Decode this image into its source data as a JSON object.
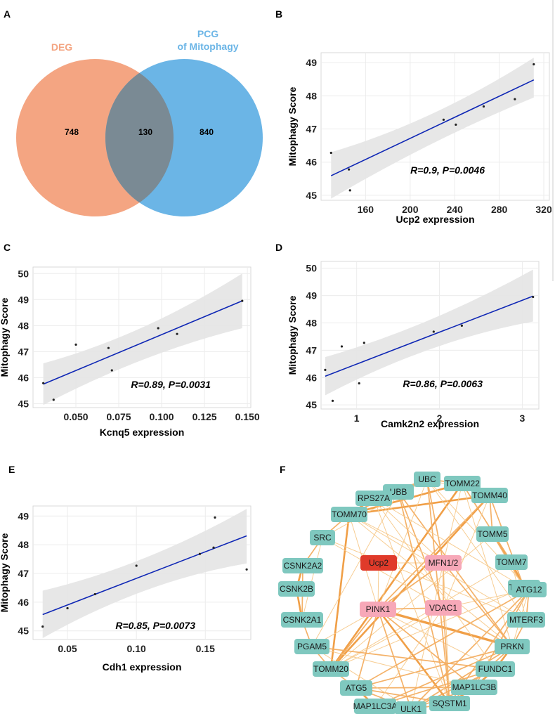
{
  "panels": {
    "A": "A",
    "B": "B",
    "C": "C",
    "D": "D",
    "E": "E",
    "F": "F"
  },
  "colors": {
    "deg": "#F4A582",
    "pcg": "#6BB5E6",
    "overlap": "#7A8A94",
    "line": "#0F27B5",
    "band": "#E6E6E6",
    "node_teal": "#7FC8BF",
    "node_pink": "#F7A8B8",
    "node_red": "#E03A2A",
    "edge": "#F3A04A"
  },
  "venn": {
    "left_label": "DEG",
    "right_label_line1": "PCG",
    "right_label_line2": "of Mitophagy",
    "left_only": "748",
    "overlap": "130",
    "right_only": "840"
  },
  "chart_data": [
    {
      "id": "B",
      "type": "scatter",
      "xlabel": "Ucp2 expression",
      "ylabel": "Mitophagy Score",
      "annotation": "R=0.9,   P=0.0046",
      "xlim": [
        120,
        325
      ],
      "ylim": [
        44.85,
        49.3
      ],
      "xticks": [
        160,
        200,
        240,
        280,
        320
      ],
      "yticks": [
        45,
        46,
        47,
        48,
        49
      ],
      "x": [
        129,
        145,
        146,
        230,
        241,
        266,
        294,
        311
      ],
      "y": [
        46.28,
        45.78,
        45.15,
        47.28,
        47.13,
        47.68,
        47.9,
        48.95
      ],
      "fit": {
        "x0": 129,
        "y0": 45.59,
        "x1": 311,
        "y1": 48.48,
        "band_lo0": 44.9,
        "band_lo_mid": 46.7,
        "band_lo1": 47.95,
        "band_hi0": 46.3,
        "band_hi_mid": 47.2,
        "band_hi1": 49.15
      }
    },
    {
      "id": "C",
      "type": "scatter",
      "xlabel": "Kcnq5 expression",
      "ylabel": "Mitophagy Score",
      "annotation": "R=0.89, P=0.0031",
      "xlim": [
        0.025,
        0.152
      ],
      "ylim": [
        44.85,
        50.25
      ],
      "xticks": [
        0.05,
        0.075,
        0.1,
        0.125,
        0.15
      ],
      "xticklabels": [
        "0.050",
        "0.075",
        "0.100",
        "0.125",
        "0.150"
      ],
      "yticks": [
        45,
        46,
        47,
        48,
        49,
        50
      ],
      "x": [
        0.031,
        0.037,
        0.05,
        0.069,
        0.071,
        0.098,
        0.109,
        0.147
      ],
      "y": [
        45.79,
        45.15,
        47.27,
        47.14,
        46.28,
        47.9,
        47.68,
        48.95
      ],
      "fit": {
        "x0": 0.031,
        "y0": 45.75,
        "x1": 0.147,
        "y1": 48.95,
        "band_lo0": 44.95,
        "band_lo_mid": 46.95,
        "band_lo1": 47.9,
        "band_hi0": 46.55,
        "band_hi_mid": 47.6,
        "band_hi1": 50.0
      }
    },
    {
      "id": "D",
      "type": "scatter",
      "xlabel": "Camk2n2 expression",
      "ylabel": "Mitophagy Score",
      "annotation": "R=0.86, P=0.0063",
      "xlim": [
        0.57,
        3.2
      ],
      "ylim": [
        44.85,
        50.25
      ],
      "xticks": [
        1,
        2,
        3
      ],
      "yticks": [
        45,
        46,
        47,
        48,
        49,
        50
      ],
      "x": [
        0.62,
        0.71,
        0.82,
        1.03,
        1.09,
        1.93,
        2.27,
        3.13
      ],
      "y": [
        46.28,
        45.15,
        47.14,
        45.79,
        47.27,
        47.68,
        47.9,
        48.95
      ],
      "fit": {
        "x0": 0.62,
        "y0": 46.05,
        "x1": 3.13,
        "y1": 48.98,
        "band_lo0": 45.35,
        "band_lo_mid": 47.35,
        "band_lo1": 48.05,
        "band_hi0": 46.75,
        "band_hi_mid": 47.85,
        "band_hi1": 49.95
      }
    },
    {
      "id": "E",
      "type": "scatter",
      "xlabel": "Cdh1 expression",
      "ylabel": "Mitophagy Score",
      "annotation": "R=0.85, P=0.0073",
      "xlim": [
        0.025,
        0.183
      ],
      "ylim": [
        44.7,
        49.35
      ],
      "xticks": [
        0.05,
        0.1,
        0.15
      ],
      "xticklabels": [
        "0.05",
        "0.10",
        "0.15"
      ],
      "yticks": [
        45,
        46,
        47,
        48,
        49
      ],
      "x": [
        0.032,
        0.05,
        0.07,
        0.1,
        0.146,
        0.156,
        0.157,
        0.18
      ],
      "y": [
        45.15,
        45.79,
        46.28,
        47.27,
        47.68,
        47.9,
        48.95,
        47.14
      ],
      "fit": {
        "x0": 0.032,
        "y0": 45.57,
        "x1": 0.18,
        "y1": 48.31,
        "band_lo0": 44.75,
        "band_lo_mid": 46.75,
        "band_lo1": 47.35,
        "band_hi0": 46.4,
        "band_hi_mid": 47.25,
        "band_hi1": 49.25
      }
    }
  ],
  "network": {
    "nodes": [
      {
        "id": "UBB",
        "label": "UBB",
        "kind": "teal"
      },
      {
        "id": "UBC",
        "label": "UBC",
        "kind": "teal"
      },
      {
        "id": "TOMM22",
        "label": "TOMM22",
        "kind": "teal"
      },
      {
        "id": "RPS27A",
        "label": "RPS27A",
        "kind": "teal"
      },
      {
        "id": "TOMM40",
        "label": "TOMM40",
        "kind": "teal"
      },
      {
        "id": "TOMM70",
        "label": "TOMM70",
        "kind": "teal"
      },
      {
        "id": "TOMM5",
        "label": "TOMM5",
        "kind": "teal"
      },
      {
        "id": "SRC",
        "label": "SRC",
        "kind": "teal"
      },
      {
        "id": "TOMM7",
        "label": "TOMM7",
        "kind": "teal"
      },
      {
        "id": "CSNK2A2",
        "label": "CSNK2A2",
        "kind": "teal"
      },
      {
        "id": "TOMM6",
        "label": "TOMM6",
        "kind": "teal"
      },
      {
        "id": "Ucp2",
        "label": "Ucp2",
        "kind": "red"
      },
      {
        "id": "MFN12",
        "label": "MFN1/2",
        "kind": "pink"
      },
      {
        "id": "CSNK2B",
        "label": "CSNK2B",
        "kind": "teal"
      },
      {
        "id": "ATG12",
        "label": "ATG12",
        "kind": "teal"
      },
      {
        "id": "PINK1",
        "label": "PINK1",
        "kind": "pink"
      },
      {
        "id": "VDAC1",
        "label": "VDAC1",
        "kind": "pink"
      },
      {
        "id": "CSNK2A1",
        "label": "CSNK2A1",
        "kind": "teal"
      },
      {
        "id": "MTERF3",
        "label": "MTERF3",
        "kind": "teal"
      },
      {
        "id": "PGAM5",
        "label": "PGAM5",
        "kind": "teal"
      },
      {
        "id": "PRKN",
        "label": "PRKN",
        "kind": "teal"
      },
      {
        "id": "TOMM20",
        "label": "TOMM20",
        "kind": "teal"
      },
      {
        "id": "FUNDC1",
        "label": "FUNDC1",
        "kind": "teal"
      },
      {
        "id": "ATG5",
        "label": "ATG5",
        "kind": "teal"
      },
      {
        "id": "MAP1LC3B",
        "label": "MAP1LC3B",
        "kind": "teal"
      },
      {
        "id": "MAP1LC3A",
        "label": "MAP1LC3A",
        "kind": "teal"
      },
      {
        "id": "ULK1",
        "label": "ULK1",
        "kind": "teal"
      },
      {
        "id": "SQSTM1",
        "label": "SQSTM1",
        "kind": "teal"
      }
    ],
    "edges": [
      [
        "UBB",
        "UBC",
        2
      ],
      [
        "UBC",
        "TOMM22",
        2
      ],
      [
        "TOMM22",
        "TOMM40",
        3
      ],
      [
        "TOMM40",
        "TOMM5",
        2
      ],
      [
        "TOMM5",
        "TOMM7",
        3
      ],
      [
        "TOMM7",
        "TOMM6",
        3
      ],
      [
        "TOMM6",
        "ATG12",
        2
      ],
      [
        "ATG12",
        "MTERF3",
        2
      ],
      [
        "MTERF3",
        "PRKN",
        2
      ],
      [
        "PRKN",
        "FUNDC1",
        3
      ],
      [
        "FUNDC1",
        "MAP1LC3B",
        3
      ],
      [
        "MAP1LC3B",
        "SQSTM1",
        3
      ],
      [
        "SQSTM1",
        "ULK1",
        2
      ],
      [
        "ULK1",
        "MAP1LC3A",
        3
      ],
      [
        "MAP1LC3A",
        "ATG5",
        3
      ],
      [
        "ATG5",
        "TOMM20",
        2
      ],
      [
        "TOMM20",
        "PGAM5",
        2
      ],
      [
        "PGAM5",
        "CSNK2A1",
        2
      ],
      [
        "CSNK2A1",
        "CSNK2B",
        3
      ],
      [
        "CSNK2B",
        "CSNK2A2",
        3
      ],
      [
        "CSNK2A2",
        "SRC",
        2
      ],
      [
        "SRC",
        "TOMM70",
        2
      ],
      [
        "TOMM70",
        "RPS27A",
        3
      ],
      [
        "RPS27A",
        "UBB",
        3
      ],
      [
        "UBB",
        "TOMM70",
        2
      ],
      [
        "UBC",
        "TOMM70",
        2
      ],
      [
        "RPS27A",
        "UBC",
        2
      ],
      [
        "TOMM22",
        "TOMM70",
        3
      ],
      [
        "TOMM40",
        "TOMM70",
        3
      ],
      [
        "TOMM22",
        "TOMM7",
        2
      ],
      [
        "TOMM40",
        "TOMM6",
        2
      ],
      [
        "TOMM5",
        "TOMM6",
        2
      ],
      [
        "TOMM22",
        "TOMM20",
        3
      ],
      [
        "TOMM40",
        "TOMM20",
        3
      ],
      [
        "TOMM70",
        "TOMM20",
        3
      ],
      [
        "TOMM5",
        "TOMM20",
        1
      ],
      [
        "TOMM7",
        "TOMM20",
        1
      ],
      [
        "TOMM6",
        "TOMM20",
        1
      ],
      [
        "PINK1",
        "PRKN",
        4
      ],
      [
        "PINK1",
        "TOMM20",
        2
      ],
      [
        "PINK1",
        "TOMM70",
        1
      ],
      [
        "PINK1",
        "SQSTM1",
        3
      ],
      [
        "PINK1",
        "MAP1LC3B",
        2
      ],
      [
        "PINK1",
        "ULK1",
        2
      ],
      [
        "PINK1",
        "ATG5",
        2
      ],
      [
        "PINK1",
        "FUNDC1",
        1
      ],
      [
        "PINK1",
        "TOMM40",
        2
      ],
      [
        "PINK1",
        "MFN12",
        2
      ],
      [
        "PINK1",
        "VDAC1",
        2
      ],
      [
        "PINK1",
        "UBC",
        1
      ],
      [
        "PINK1",
        "PGAM5",
        1
      ],
      [
        "VDAC1",
        "PRKN",
        2
      ],
      [
        "VDAC1",
        "MFN12",
        2
      ],
      [
        "VDAC1",
        "SQSTM1",
        2
      ],
      [
        "VDAC1",
        "TOMM40",
        1
      ],
      [
        "VDAC1",
        "UBB",
        2
      ],
      [
        "VDAC1",
        "TOMM20",
        1
      ],
      [
        "VDAC1",
        "ATG12",
        1
      ],
      [
        "VDAC1",
        "MAP1LC3A",
        1
      ],
      [
        "MFN12",
        "PRKN",
        2
      ],
      [
        "MFN12",
        "TOMM22",
        1
      ],
      [
        "MFN12",
        "UBC",
        2
      ],
      [
        "MFN12",
        "RPS27A",
        1
      ],
      [
        "MFN12",
        "TOMM70",
        1
      ],
      [
        "MFN12",
        "SQSTM1",
        1
      ],
      [
        "MFN12",
        "ULK1",
        1
      ],
      [
        "Ucp2",
        "PINK1",
        1
      ],
      [
        "Ucp2",
        "MFN12",
        1
      ],
      [
        "PRKN",
        "SQSTM1",
        2
      ],
      [
        "PRKN",
        "ULK1",
        2
      ],
      [
        "PRKN",
        "TOMM70",
        1
      ],
      [
        "PRKN",
        "UBB",
        2
      ],
      [
        "PRKN",
        "ATG12",
        1
      ],
      [
        "PRKN",
        "MAP1LC3A",
        2
      ],
      [
        "PRKN",
        "TOMM22",
        1
      ],
      [
        "PRKN",
        "ATG5",
        2
      ],
      [
        "SQSTM1",
        "ATG5",
        2
      ],
      [
        "SQSTM1",
        "ATG12",
        2
      ],
      [
        "ULK1",
        "ATG12",
        2
      ],
      [
        "ULK1",
        "FUNDC1",
        2
      ],
      [
        "MAP1LC3B",
        "ATG5",
        2
      ],
      [
        "MAP1LC3A",
        "FUNDC1",
        2
      ],
      [
        "MAP1LC3B",
        "ATG12",
        2
      ],
      [
        "SQSTM1",
        "UBB",
        2
      ],
      [
        "SQSTM1",
        "UBC",
        2
      ],
      [
        "SQSTM1",
        "RPS27A",
        1
      ],
      [
        "ULK1",
        "MAP1LC3B",
        2
      ],
      [
        "ATG5",
        "ATG12",
        2
      ],
      [
        "ATG5",
        "ULK1",
        2
      ],
      [
        "SRC",
        "CSNK2A1",
        1
      ],
      [
        "SRC",
        "PRKN",
        1
      ],
      [
        "SRC",
        "UBC",
        1
      ],
      [
        "CSNK2A2",
        "CSNK2A1",
        2
      ],
      [
        "PGAM5",
        "FUNDC1",
        2
      ],
      [
        "PGAM5",
        "ULK1",
        1
      ],
      [
        "PGAM5",
        "MAP1LC3B",
        1
      ],
      [
        "PGAM5",
        "UBB",
        1
      ],
      [
        "UBB",
        "UBC",
        2
      ],
      [
        "UBC",
        "TOMM40",
        1
      ],
      [
        "UBC",
        "ATG12",
        1
      ],
      [
        "UBC",
        "MTERF3",
        1
      ],
      [
        "RPS27A",
        "TOMM6",
        1
      ],
      [
        "RPS27A",
        "FUNDC1",
        1
      ],
      [
        "MTERF3",
        "TOMM7",
        1
      ],
      [
        "TOMM70",
        "MTERF3",
        1
      ],
      [
        "SRC",
        "MTERF3",
        1
      ]
    ]
  }
}
